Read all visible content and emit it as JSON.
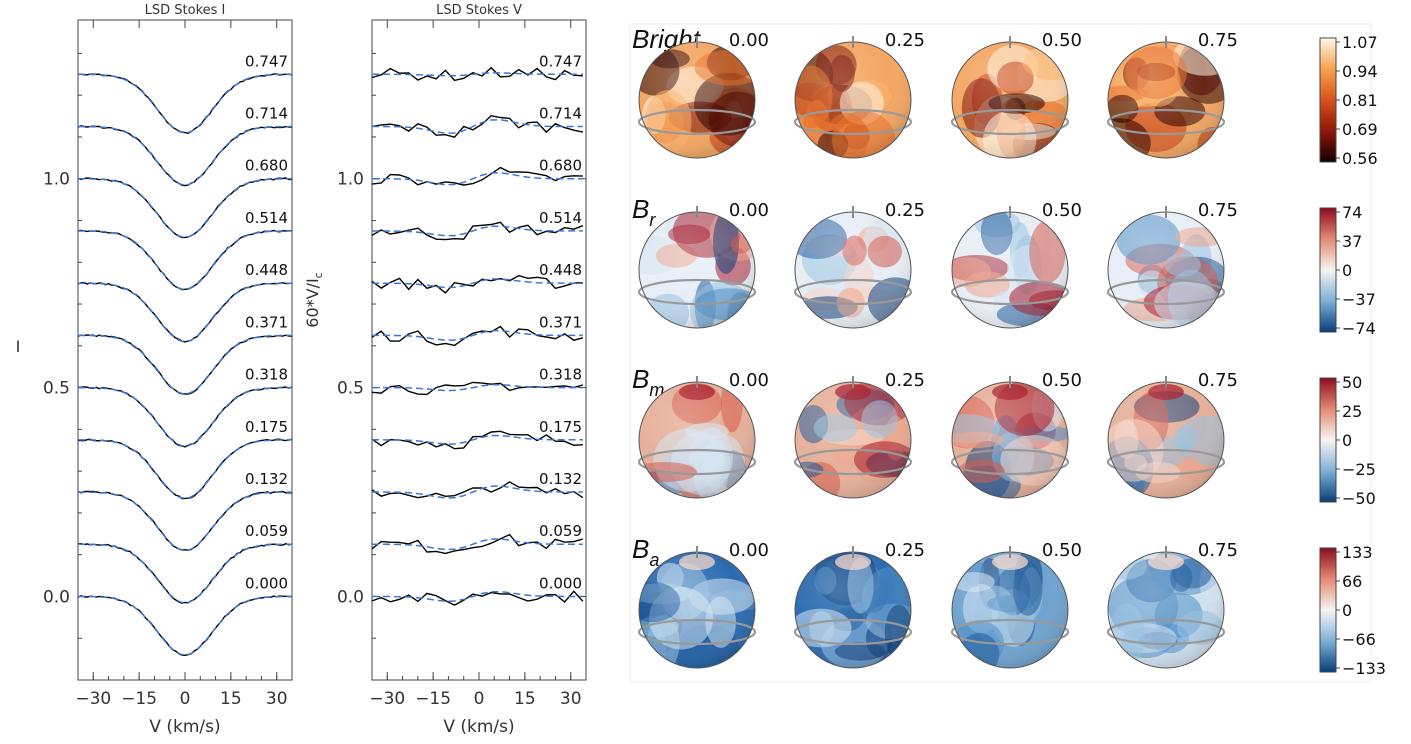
{
  "chart_data": [
    {
      "type": "line",
      "title": "LSD Stokes I",
      "xlabel": "V (km/s)",
      "ylabel": "I",
      "x_ticks": [
        -30,
        -15,
        0,
        15,
        30
      ],
      "x_tick_labels": [
        "−30",
        "−15",
        "0",
        "15",
        "30"
      ],
      "y_ticks": [
        0.0,
        0.5,
        1.0
      ],
      "y_tick_labels": [
        "0.0",
        "0.5",
        "1.0"
      ],
      "xlim": [
        -35,
        35
      ],
      "ylim": [
        -0.2,
        1.38
      ],
      "phases": [
        "0.000",
        "0.059",
        "0.132",
        "0.175",
        "0.318",
        "0.371",
        "0.448",
        "0.514",
        "0.680",
        "0.714",
        "0.747"
      ],
      "offsets": [
        0.0,
        0.125,
        0.25,
        0.375,
        0.5,
        0.625,
        0.75,
        0.875,
        1.0,
        1.125,
        1.25
      ],
      "line_depth": 0.14,
      "line_sigma_kms": 9,
      "series": [
        {
          "name": "Observed",
          "color": "#000000",
          "style": "solid"
        },
        {
          "name": "Model",
          "color": "#3a78d4",
          "style": "dashed"
        }
      ]
    },
    {
      "type": "line",
      "title": "LSD Stokes V",
      "xlabel": "V (km/s)",
      "ylabel": "60*V/I",
      "ylabel_subscript": "c",
      "x_ticks": [
        -30,
        -15,
        0,
        15,
        30
      ],
      "x_tick_labels": [
        "−30",
        "−15",
        "0",
        "15",
        "30"
      ],
      "y_ticks": [
        0.0,
        0.5,
        1.0
      ],
      "y_tick_labels": [
        "0.0",
        "0.5",
        "1.0"
      ],
      "xlim": [
        -35,
        35
      ],
      "ylim": [
        -0.2,
        1.38
      ],
      "phases": [
        "0.000",
        "0.059",
        "0.132",
        "0.175",
        "0.318",
        "0.371",
        "0.448",
        "0.514",
        "0.680",
        "0.714",
        "0.747"
      ],
      "offsets": [
        0.0,
        0.125,
        0.25,
        0.375,
        0.5,
        0.625,
        0.75,
        0.875,
        1.0,
        1.125,
        1.25
      ],
      "profile_amplitudes": [
        0.02,
        0.022,
        0.025,
        0.018,
        0.012,
        0.02,
        0.018,
        0.02,
        0.025,
        0.028,
        0.006
      ],
      "series": [
        {
          "name": "Observed",
          "color": "#000000",
          "style": "solid"
        },
        {
          "name": "Model",
          "color": "#3a78d4",
          "style": "dashed"
        }
      ]
    },
    {
      "type": "heatmap",
      "phases": [
        "0.00",
        "0.25",
        "0.50",
        "0.75"
      ],
      "rows": [
        {
          "title": "Bright",
          "subscript": "",
          "colormap": "hot",
          "ticks": [
            "1.07",
            "0.94",
            "0.81",
            "0.69",
            "0.56"
          ]
        },
        {
          "title": "B",
          "subscript": "r",
          "colormap": "bwr",
          "ticks": [
            "74",
            "37",
            "0",
            "−37",
            "−74"
          ]
        },
        {
          "title": "B",
          "subscript": "m",
          "colormap": "bwr",
          "ticks": [
            "50",
            "25",
            "0",
            "−25",
            "−50"
          ]
        },
        {
          "title": "B",
          "subscript": "a",
          "colormap": "bwr",
          "ticks": [
            "133",
            "66",
            "0",
            "−66",
            "−133"
          ]
        }
      ]
    }
  ]
}
